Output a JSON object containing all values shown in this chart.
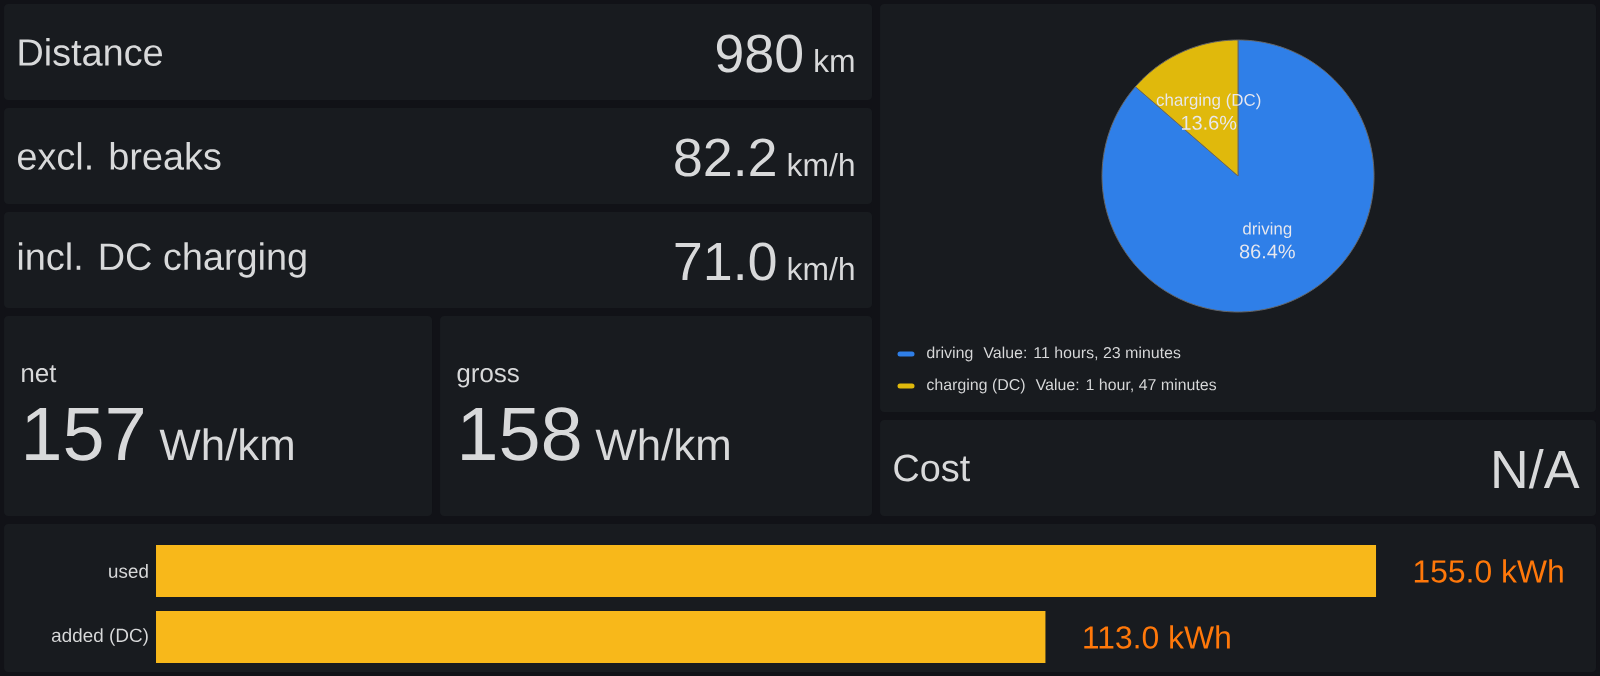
{
  "chart_data": [
    {
      "type": "other",
      "title": "Distance",
      "annotations": [
        "980",
        "km"
      ]
    },
    {
      "type": "other",
      "title": "excl. breaks",
      "annotations": [
        "82.2",
        "km/h"
      ]
    },
    {
      "type": "other",
      "title": "incl. DC charging",
      "annotations": [
        "71.0",
        "km/h"
      ]
    },
    {
      "type": "other",
      "title": "net",
      "annotations": [
        "157",
        "Wh/km"
      ]
    },
    {
      "type": "other",
      "title": "gross",
      "annotations": [
        "158",
        "Wh/km"
      ]
    },
    {
      "type": "pie",
      "categories": [
        "driving",
        "charging (DC)"
      ],
      "values": [
        86.4,
        13.6
      ],
      "colors": [
        "#2f7fe8",
        "#e0b90c"
      ],
      "value_labels": [
        "86.4%",
        "13.6%"
      ],
      "legend": "bottom",
      "annotations": [
        "Value: 11 hours, 23 minutes",
        "Value: 1 hour, 47 minutes"
      ]
    },
    {
      "type": "other",
      "title": "Cost",
      "annotations": [
        "N/A"
      ]
    },
    {
      "type": "bar",
      "orientation": "horizontal",
      "categories": [
        "used",
        "added (DC)"
      ],
      "values": [
        155.0,
        113.0
      ],
      "value_labels": [
        "155.0 kWh",
        "113.0 kWh"
      ],
      "color": "#f8b81a",
      "xlim": [
        0,
        155
      ]
    }
  ]
}
